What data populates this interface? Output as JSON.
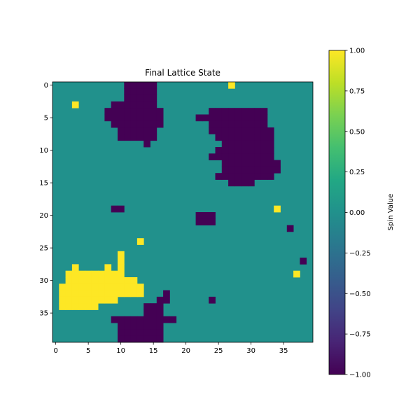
{
  "chart_data": {
    "type": "heatmap",
    "title": "Final Lattice State",
    "xlabel": "",
    "ylabel": "",
    "grid_size": [
      40,
      40
    ],
    "x_ticks": [
      0,
      5,
      10,
      15,
      20,
      25,
      30,
      35
    ],
    "y_ticks": [
      0,
      5,
      10,
      15,
      20,
      25,
      30,
      35
    ],
    "colormap": "viridis",
    "colorbar": {
      "label": "Spin Value",
      "vmin": -1.0,
      "vmax": 1.0,
      "ticks": [
        "1.00",
        "0.75",
        "0.50",
        "0.25",
        "0.00",
        "−0.25",
        "−0.50",
        "−0.75",
        "−1.00"
      ],
      "tick_values": [
        1.0,
        0.75,
        0.5,
        0.25,
        0.0,
        -0.25,
        -0.5,
        -0.75,
        -1.0
      ]
    },
    "colors": {
      "plus_one": "#fde725",
      "zero": "#21918c",
      "minus_one": "#440154"
    },
    "rows_encoding": "one string per row (row 0 at top); character per column: '+' = 1, '-' = -1, '.' = 0",
    "rows": [
      "...........-----...........+............",
      "...........-----........................",
      "...........-----........................",
      "...+.....-------........................",
      "........---------.......---------.......",
      "........---------.....-----------.......",
      ".........--------.......---------.......",
      "..........------........----------......",
      "..........------.........---------......",
      "..............-...........--------......",
      ".........................---------......",
      "........................----------......",
      "..........................---------.....",
      "..........................---------.....",
      ".........................---------.......",
      "...........................----.........",
      "........................................",
      "........................................",
      "........................................",
      ".........--.......................+.....",
      "......................---...............",
      "......................---...............",
      "....................................-...",
      "........................................",
      ".............+..........................",
      "........................................",
      "..........+.............................",
      "..........+...........................-.",
      "...+....+.+.............................",
      "..+++++++++..........................+..",
      "..+++++++++++...........................",
      ".+++++++++++++..........................",
      ".+++++++++++++...-......................",
      ".+++++++++......--......-...............",
      ".++++++.......---......................",
      "..............---.......................",
      ".........----------.....................",
      "..........-------.......................",
      "..........-------.......................",
      "..........-------......................."
    ]
  }
}
